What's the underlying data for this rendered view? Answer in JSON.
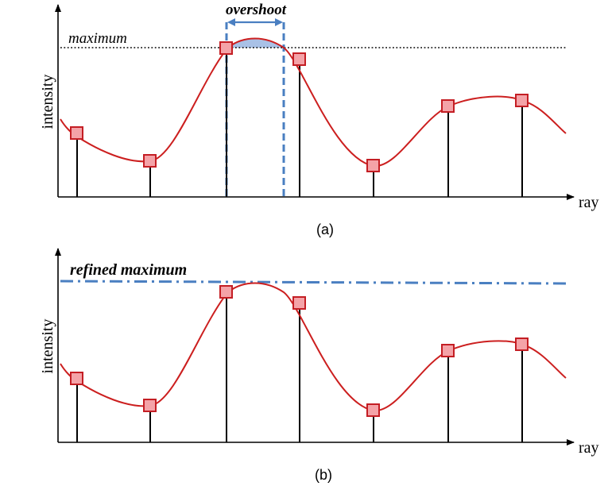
{
  "colors": {
    "curve": "#cc1f1f",
    "sample_fill": "#f4a3a8",
    "sample_stroke": "#c41e24",
    "accent_blue": "#4a7fc1",
    "overshoot_fill": "#a9c1e6",
    "axis": "#000000"
  },
  "panel_a": {
    "caption": "(a)",
    "ylabel": "intensity",
    "xlabel": "ray",
    "max_label": "maximum",
    "overshoot_label": "overshoot"
  },
  "panel_b": {
    "caption": "(b)",
    "ylabel": "intensity",
    "xlabel": "ray",
    "refined_label": "refined maximum"
  }
}
